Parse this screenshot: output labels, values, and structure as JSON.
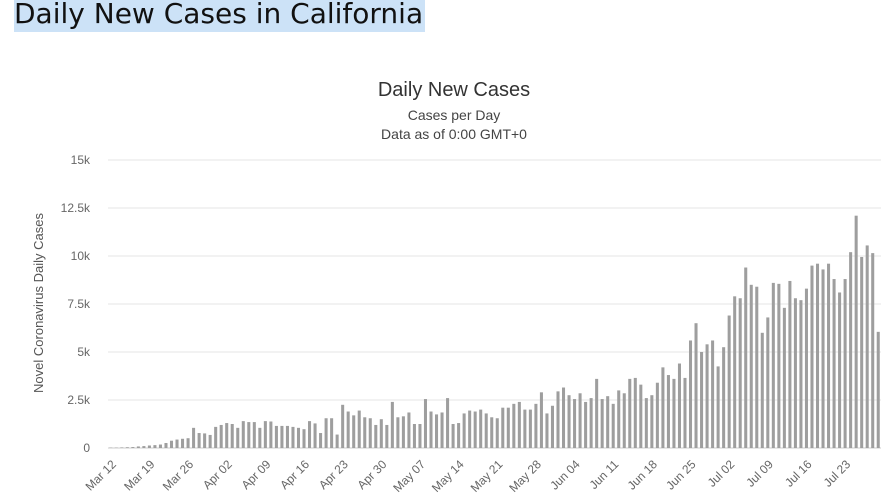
{
  "page": {
    "heading": "Daily New Cases in California"
  },
  "colors": {
    "bar": "#9e9e9e",
    "grid": "#e6e6e6",
    "highlight": "#cce2f7"
  },
  "chart_data": {
    "type": "bar",
    "title": "Daily New Cases",
    "subtitle": "Cases per Day",
    "subtitle2": "Data as of 0:00 GMT+0",
    "xlabel": "",
    "ylabel": "Novel Coronavirus Daily Cases",
    "ylim": [
      0,
      15000
    ],
    "yticks": [
      0,
      2500,
      5000,
      7500,
      10000,
      12500,
      15000
    ],
    "ytick_labels": [
      "0",
      "2.5k",
      "5k",
      "7.5k",
      "10k",
      "12.5k",
      "15k"
    ],
    "xtick_labels": [
      "Mar 12",
      "Mar 19",
      "Mar 26",
      "Apr 02",
      "Apr 09",
      "Apr 16",
      "Apr 23",
      "Apr 30",
      "May 07",
      "May 14",
      "May 21",
      "May 28",
      "Jun 04",
      "Jun 11",
      "Jun 18",
      "Jun 25",
      "Jul 02",
      "Jul 09",
      "Jul 16",
      "Jul 23"
    ],
    "grid": true,
    "legend": "none",
    "start_date": "Mar 12",
    "values": [
      20,
      20,
      30,
      40,
      50,
      80,
      100,
      130,
      150,
      180,
      260,
      380,
      440,
      480,
      510,
      1050,
      780,
      760,
      680,
      1100,
      1200,
      1300,
      1250,
      1050,
      1400,
      1350,
      1350,
      1050,
      1400,
      1380,
      1150,
      1150,
      1150,
      1100,
      1050,
      980,
      1400,
      1280,
      780,
      1550,
      1550,
      700,
      2250,
      1900,
      1700,
      1950,
      1600,
      1550,
      1200,
      1500,
      1200,
      2400,
      1600,
      1650,
      1850,
      1250,
      1250,
      2550,
      1900,
      1750,
      1850,
      2600,
      1250,
      1300,
      1800,
      1950,
      1900,
      2000,
      1800,
      1600,
      1550,
      2100,
      2100,
      2300,
      2400,
      2000,
      2000,
      2300,
      2900,
      1800,
      2200,
      2950,
      3150,
      2750,
      2550,
      2850,
      2400,
      2600,
      3600,
      2550,
      2700,
      2300,
      3000,
      2850,
      3600,
      3650,
      3300,
      2600,
      2750,
      3400,
      4200,
      3800,
      3600,
      4400,
      3650,
      5600,
      6500,
      5000,
      5400,
      5600,
      4250,
      5250,
      6900,
      7900,
      7800,
      9400,
      8500,
      8400,
      6000,
      6800,
      8600,
      8550,
      7300,
      8700,
      7800,
      7700,
      8300,
      9500,
      9600,
      9300,
      9600,
      8800,
      8100,
      8800,
      10200,
      12100,
      9950,
      10550,
      10150,
      6050
    ]
  }
}
